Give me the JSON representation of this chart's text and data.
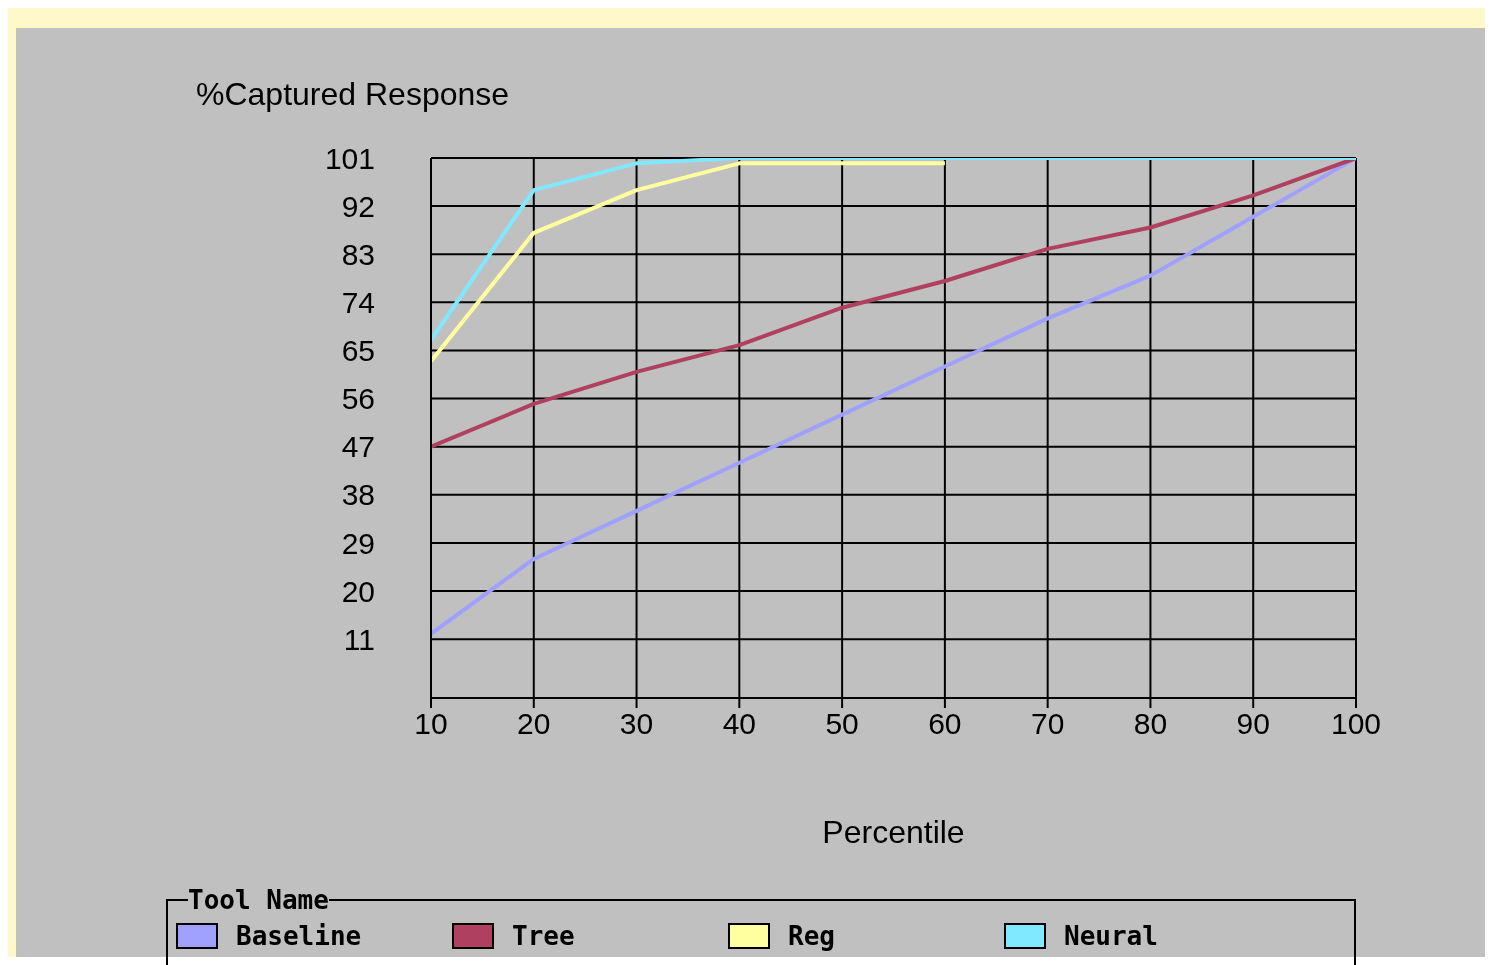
{
  "chart_data": {
    "type": "line",
    "xlabel": "Percentile",
    "ylabel": "%Captured Response",
    "legend_title": "Tool Name",
    "legend": "bottom",
    "grid": true,
    "marker": "none",
    "line_style": "solid",
    "x": [
      10,
      20,
      30,
      40,
      50,
      60,
      70,
      80,
      90,
      100
    ],
    "xlim": [
      10,
      100
    ],
    "xticks": [
      10,
      20,
      30,
      40,
      50,
      60,
      70,
      80,
      90,
      100
    ],
    "ylim": [
      0,
      101
    ],
    "yticks": [
      11,
      20,
      29,
      38,
      47,
      56,
      65,
      74,
      83,
      92,
      101
    ],
    "series": [
      {
        "name": "Baseline",
        "color": "#a0a0ff",
        "values": [
          12,
          26,
          35,
          44,
          53,
          62,
          71,
          79,
          90,
          101
        ]
      },
      {
        "name": "Tree",
        "color": "#b04060",
        "values": [
          47,
          55,
          61,
          66,
          73,
          78,
          84,
          88,
          94,
          101
        ]
      },
      {
        "name": "Reg",
        "color": "#ffffa0",
        "values": [
          63,
          87,
          95,
          100,
          100,
          100,
          null,
          null,
          null,
          null
        ]
      },
      {
        "name": "Neural",
        "color": "#80e8ff",
        "values": [
          67,
          95,
          100,
          101,
          101,
          101,
          101,
          101,
          101,
          101
        ]
      }
    ]
  }
}
